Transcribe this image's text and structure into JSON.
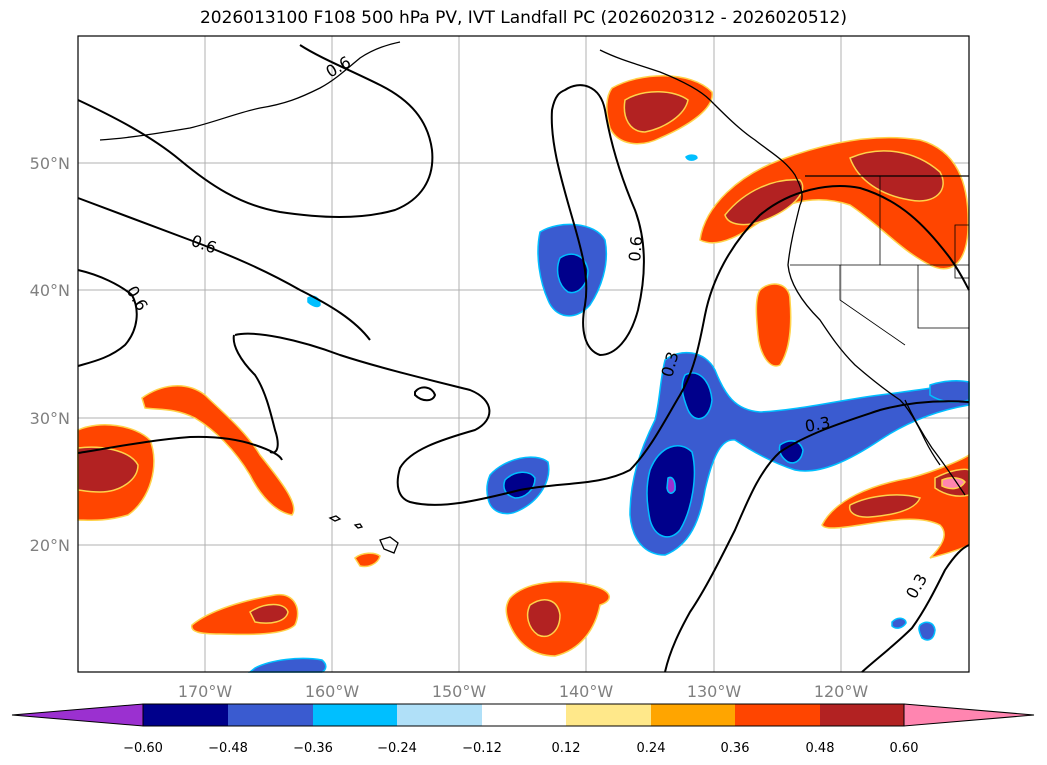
{
  "title": "2026013100 F108 500 hPa PV, IVT Landfall PC (2026020312 - 2026020512)",
  "map": {
    "lat_labels": [
      "50°N",
      "40°N",
      "30°N",
      "20°N"
    ],
    "lon_labels": [
      "170°W",
      "160°W",
      "150°W",
      "140°W",
      "130°W",
      "120°W"
    ],
    "contour_labels": [
      "0.6",
      "0.6",
      "0.6",
      "0.6",
      "0.3",
      "0.3",
      "0.3"
    ]
  },
  "colorbar": {
    "ticks": [
      "−0.60",
      "−0.48",
      "−0.36",
      "−0.24",
      "−0.12",
      "0.12",
      "0.24",
      "0.36",
      "0.48",
      "0.60"
    ],
    "colors": [
      "#9b30d0",
      "#00008b",
      "#3a5bd0",
      "#00bfff",
      "#b0e0f8",
      "#ffffff",
      "#ffe88a",
      "#ffa500",
      "#ff4500",
      "#b22222",
      "#ff85b0"
    ]
  }
}
